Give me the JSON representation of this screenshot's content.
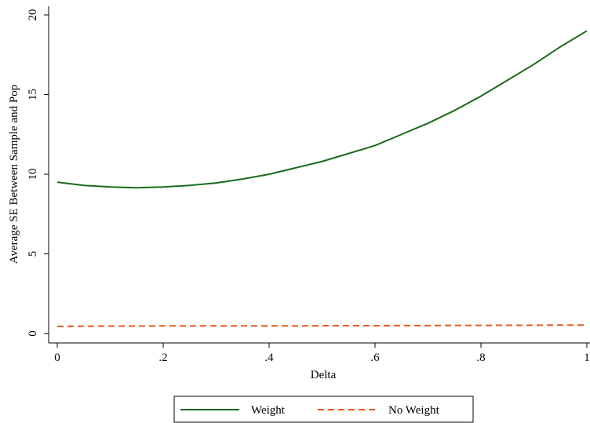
{
  "chart_data": {
    "type": "line",
    "x": [
      0,
      0.05,
      0.1,
      0.15,
      0.2,
      0.25,
      0.3,
      0.35,
      0.4,
      0.45,
      0.5,
      0.55,
      0.6,
      0.65,
      0.7,
      0.75,
      0.8,
      0.85,
      0.9,
      0.95,
      1
    ],
    "series": [
      {
        "name": "Weight",
        "color": "#1a6b1a",
        "dash": false,
        "values": [
          9.5,
          9.3,
          9.2,
          9.15,
          9.2,
          9.3,
          9.45,
          9.7,
          10.0,
          10.4,
          10.8,
          11.3,
          11.8,
          12.5,
          13.2,
          14.0,
          14.9,
          15.9,
          16.9,
          18.0,
          19.0
        ]
      },
      {
        "name": "No Weight",
        "color": "#e8581f",
        "dash": true,
        "values": [
          0.45,
          0.46,
          0.47,
          0.47,
          0.48,
          0.48,
          0.48,
          0.48,
          0.48,
          0.48,
          0.49,
          0.49,
          0.49,
          0.5,
          0.5,
          0.51,
          0.51,
          0.52,
          0.52,
          0.53,
          0.53
        ]
      }
    ],
    "x_label": "Delta",
    "y_label": "Average SE Between Sample and Pop",
    "xlim": [
      0,
      1
    ],
    "xticks": [
      0,
      {
        "value": 0.2,
        "label": ".2"
      },
      {
        "value": 0.4,
        "label": ".4"
      },
      {
        "value": 0.6,
        "label": ".6"
      },
      {
        "value": 0.8,
        "label": ".8"
      },
      1
    ],
    "ylim": [
      0,
      20
    ],
    "yticks": [
      0,
      5,
      10,
      15,
      20
    ],
    "legend": "bottom"
  }
}
